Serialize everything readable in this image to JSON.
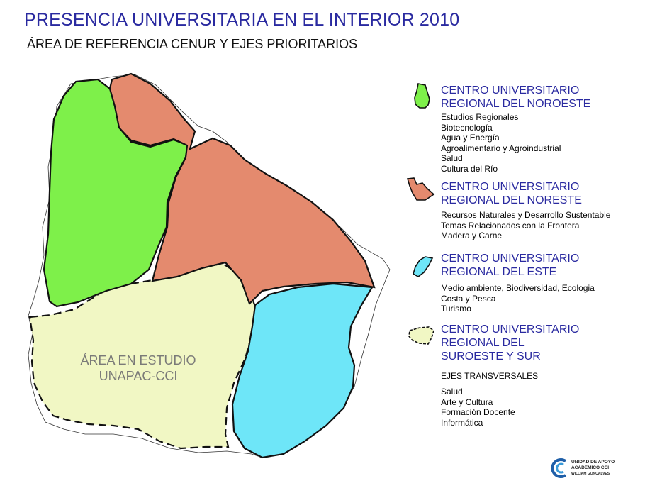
{
  "title": "PRESENCIA UNIVERSITARIA EN EL INTERIOR 2010",
  "subtitle": "ÁREA DE REFERENCIA CENUR Y EJES PRIORITARIOS",
  "map_label": [
    "ÁREA EN ESTUDIO",
    "UNAPAC-CCI"
  ],
  "colors": {
    "noroeste": "#7ef04a",
    "noreste": "#e48a6e",
    "este": "#6ee6f8",
    "suroeste": "#f1f7c4",
    "title": "#2a2aa0"
  },
  "legend": [
    {
      "key": "noroeste",
      "title": [
        "CENTRO UNIVERSITARIO",
        "REGIONAL DEL NOROESTE"
      ],
      "items": [
        "Estudios Regionales",
        "Biotecnología",
        "Agua y Energía",
        "Agroalimentario y Agroindustrial",
        "Salud",
        "Cultura del Río"
      ]
    },
    {
      "key": "noreste",
      "title": [
        "CENTRO UNIVERSITARIO",
        "REGIONAL DEL NORESTE"
      ],
      "items": [
        "Recursos Naturales y Desarrollo Sustentable",
        "Temas Relacionados con la Frontera",
        "Madera y Carne"
      ]
    },
    {
      "key": "este",
      "title": [
        "CENTRO UNIVERSITARIO",
        "REGIONAL DEL ESTE"
      ],
      "items": [
        "Medio ambiente, Biodiversidad, Ecologia",
        "Costa y Pesca",
        "Turismo"
      ]
    },
    {
      "key": "suroeste",
      "title": [
        "CENTRO UNIVERSITARIO",
        "REGIONAL DEL",
        "SUROESTE Y SUR"
      ],
      "items": []
    }
  ],
  "transversal": {
    "heading": "EJES TRANSVERSALES",
    "items": [
      "Salud",
      "Arte y Cultura",
      "Formación Docente",
      "Informática"
    ]
  },
  "logo": [
    "UNIDAD DE APOYO",
    "ACADEMICO CCI",
    "WILLIAM GONÇALVES"
  ]
}
